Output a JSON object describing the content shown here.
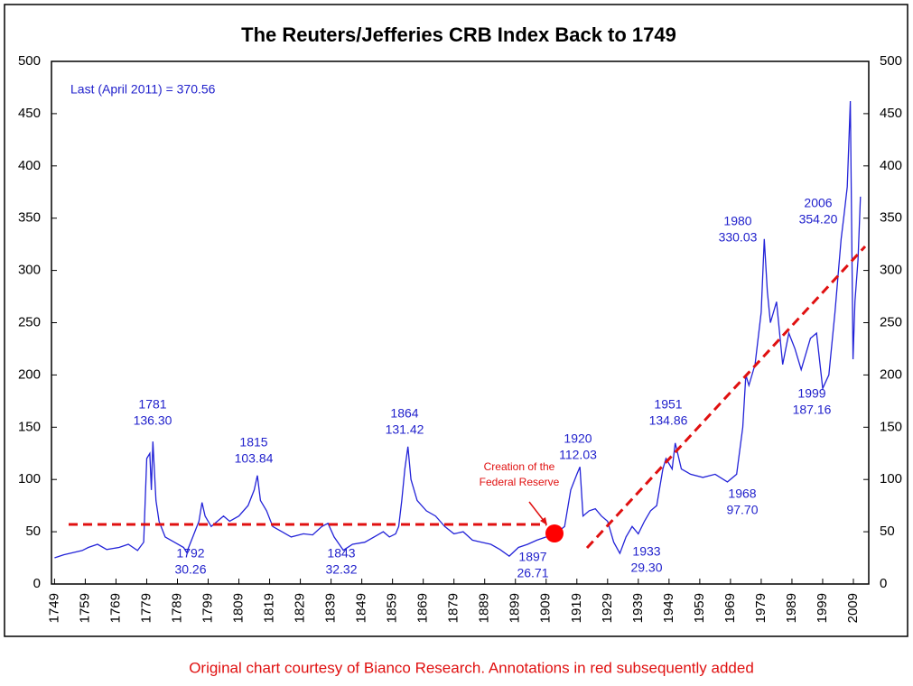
{
  "chart_data": {
    "type": "line",
    "title": "The Reuters/Jefferies CRB Index Back to 1749",
    "note": "Last (April 2011) = 370.56",
    "footnote": "Original chart courtesy of Bianco Research.  Annotations in red subsequently added",
    "red_note": [
      "Creation of the",
      "Federal Reserve"
    ],
    "xlim": [
      1748,
      2014
    ],
    "xticks": [
      1749,
      1759,
      1769,
      1779,
      1789,
      1799,
      1809,
      1819,
      1829,
      1839,
      1849,
      1859,
      1869,
      1879,
      1889,
      1899,
      1909,
      1919,
      1929,
      1939,
      1949,
      1959,
      1969,
      1979,
      1989,
      1999,
      2009
    ],
    "ylim": [
      0,
      500
    ],
    "yticks": [
      0,
      50,
      100,
      150,
      200,
      250,
      300,
      350,
      400,
      450,
      500
    ],
    "y2lim": [
      0,
      500
    ],
    "y2ticks": [
      0,
      50,
      100,
      150,
      200,
      250,
      300,
      350,
      400,
      450,
      500
    ],
    "series": [
      {
        "color": "#2323d8",
        "x": [
          1749,
          1752,
          1755,
          1758,
          1760,
          1763,
          1766,
          1770,
          1773,
          1776,
          1778,
          1779,
          1780,
          1780.5,
          1781,
          1782,
          1783,
          1785,
          1788,
          1791,
          1792,
          1794,
          1796,
          1797,
          1798,
          1800,
          1802,
          1804,
          1806,
          1809,
          1812,
          1814,
          1815,
          1816,
          1818,
          1820,
          1823,
          1826,
          1830,
          1833,
          1836,
          1838,
          1840,
          1843,
          1846,
          1850,
          1853,
          1856,
          1858,
          1860,
          1861,
          1862,
          1863,
          1864,
          1865,
          1867,
          1870,
          1873,
          1876,
          1879,
          1882,
          1885,
          1888,
          1891,
          1894,
          1897,
          1900,
          1903,
          1906,
          1909,
          1912,
          1915,
          1917,
          1919,
          1920,
          1921,
          1923,
          1925,
          1927,
          1929,
          1931,
          1933,
          1935,
          1937,
          1939,
          1941,
          1943,
          1945,
          1947,
          1948,
          1950,
          1951,
          1953,
          1956,
          1960,
          1964,
          1968,
          1971,
          1973,
          1974,
          1975,
          1977,
          1979,
          1980,
          1981,
          1982,
          1984,
          1986,
          1988,
          1990,
          1992,
          1995,
          1997,
          1999,
          2001,
          2003,
          2005,
          2006,
          2007,
          2008,
          2008.9,
          2009.5,
          2010.5,
          2011.3
        ],
        "values": [
          25,
          28,
          30,
          32,
          35,
          38,
          33,
          35,
          38,
          32,
          40,
          120,
          125,
          90,
          136.3,
          80,
          60,
          45,
          40,
          35,
          30.26,
          45,
          60,
          78,
          65,
          55,
          60,
          65,
          60,
          65,
          75,
          90,
          103.84,
          80,
          70,
          55,
          50,
          45,
          48,
          47,
          55,
          58,
          45,
          32.32,
          38,
          40,
          45,
          50,
          45,
          48,
          55,
          80,
          110,
          131.42,
          100,
          80,
          70,
          65,
          55,
          48,
          50,
          42,
          40,
          38,
          33,
          26.71,
          35,
          38,
          42,
          45,
          48,
          55,
          90,
          105,
          112.03,
          65,
          70,
          72,
          65,
          60,
          40,
          29.3,
          45,
          55,
          48,
          60,
          70,
          75,
          110,
          120,
          110,
          134.86,
          110,
          105,
          102,
          105,
          97.7,
          105,
          150,
          200,
          190,
          210,
          260,
          330.03,
          280,
          250,
          270,
          210,
          240,
          225,
          205,
          235,
          240,
          187.16,
          200,
          260,
          330,
          354.2,
          380,
          462,
          215,
          270,
          310,
          370.56
        ]
      }
    ],
    "annotations": [
      [
        "1781",
        "136.30"
      ],
      [
        "1792",
        "30.26"
      ],
      [
        "1815",
        "103.84"
      ],
      [
        "1843",
        "32.32"
      ],
      [
        "1864",
        "131.42"
      ],
      [
        "1897",
        "26.71"
      ],
      [
        "1920",
        "112.03"
      ],
      [
        "1933",
        "29.30"
      ],
      [
        "1951",
        "134.86"
      ],
      [
        "1968",
        "97.70"
      ],
      [
        "1980",
        "330.03"
      ],
      [
        "2006",
        "354.20"
      ],
      [
        "1999",
        "187.16"
      ]
    ]
  }
}
